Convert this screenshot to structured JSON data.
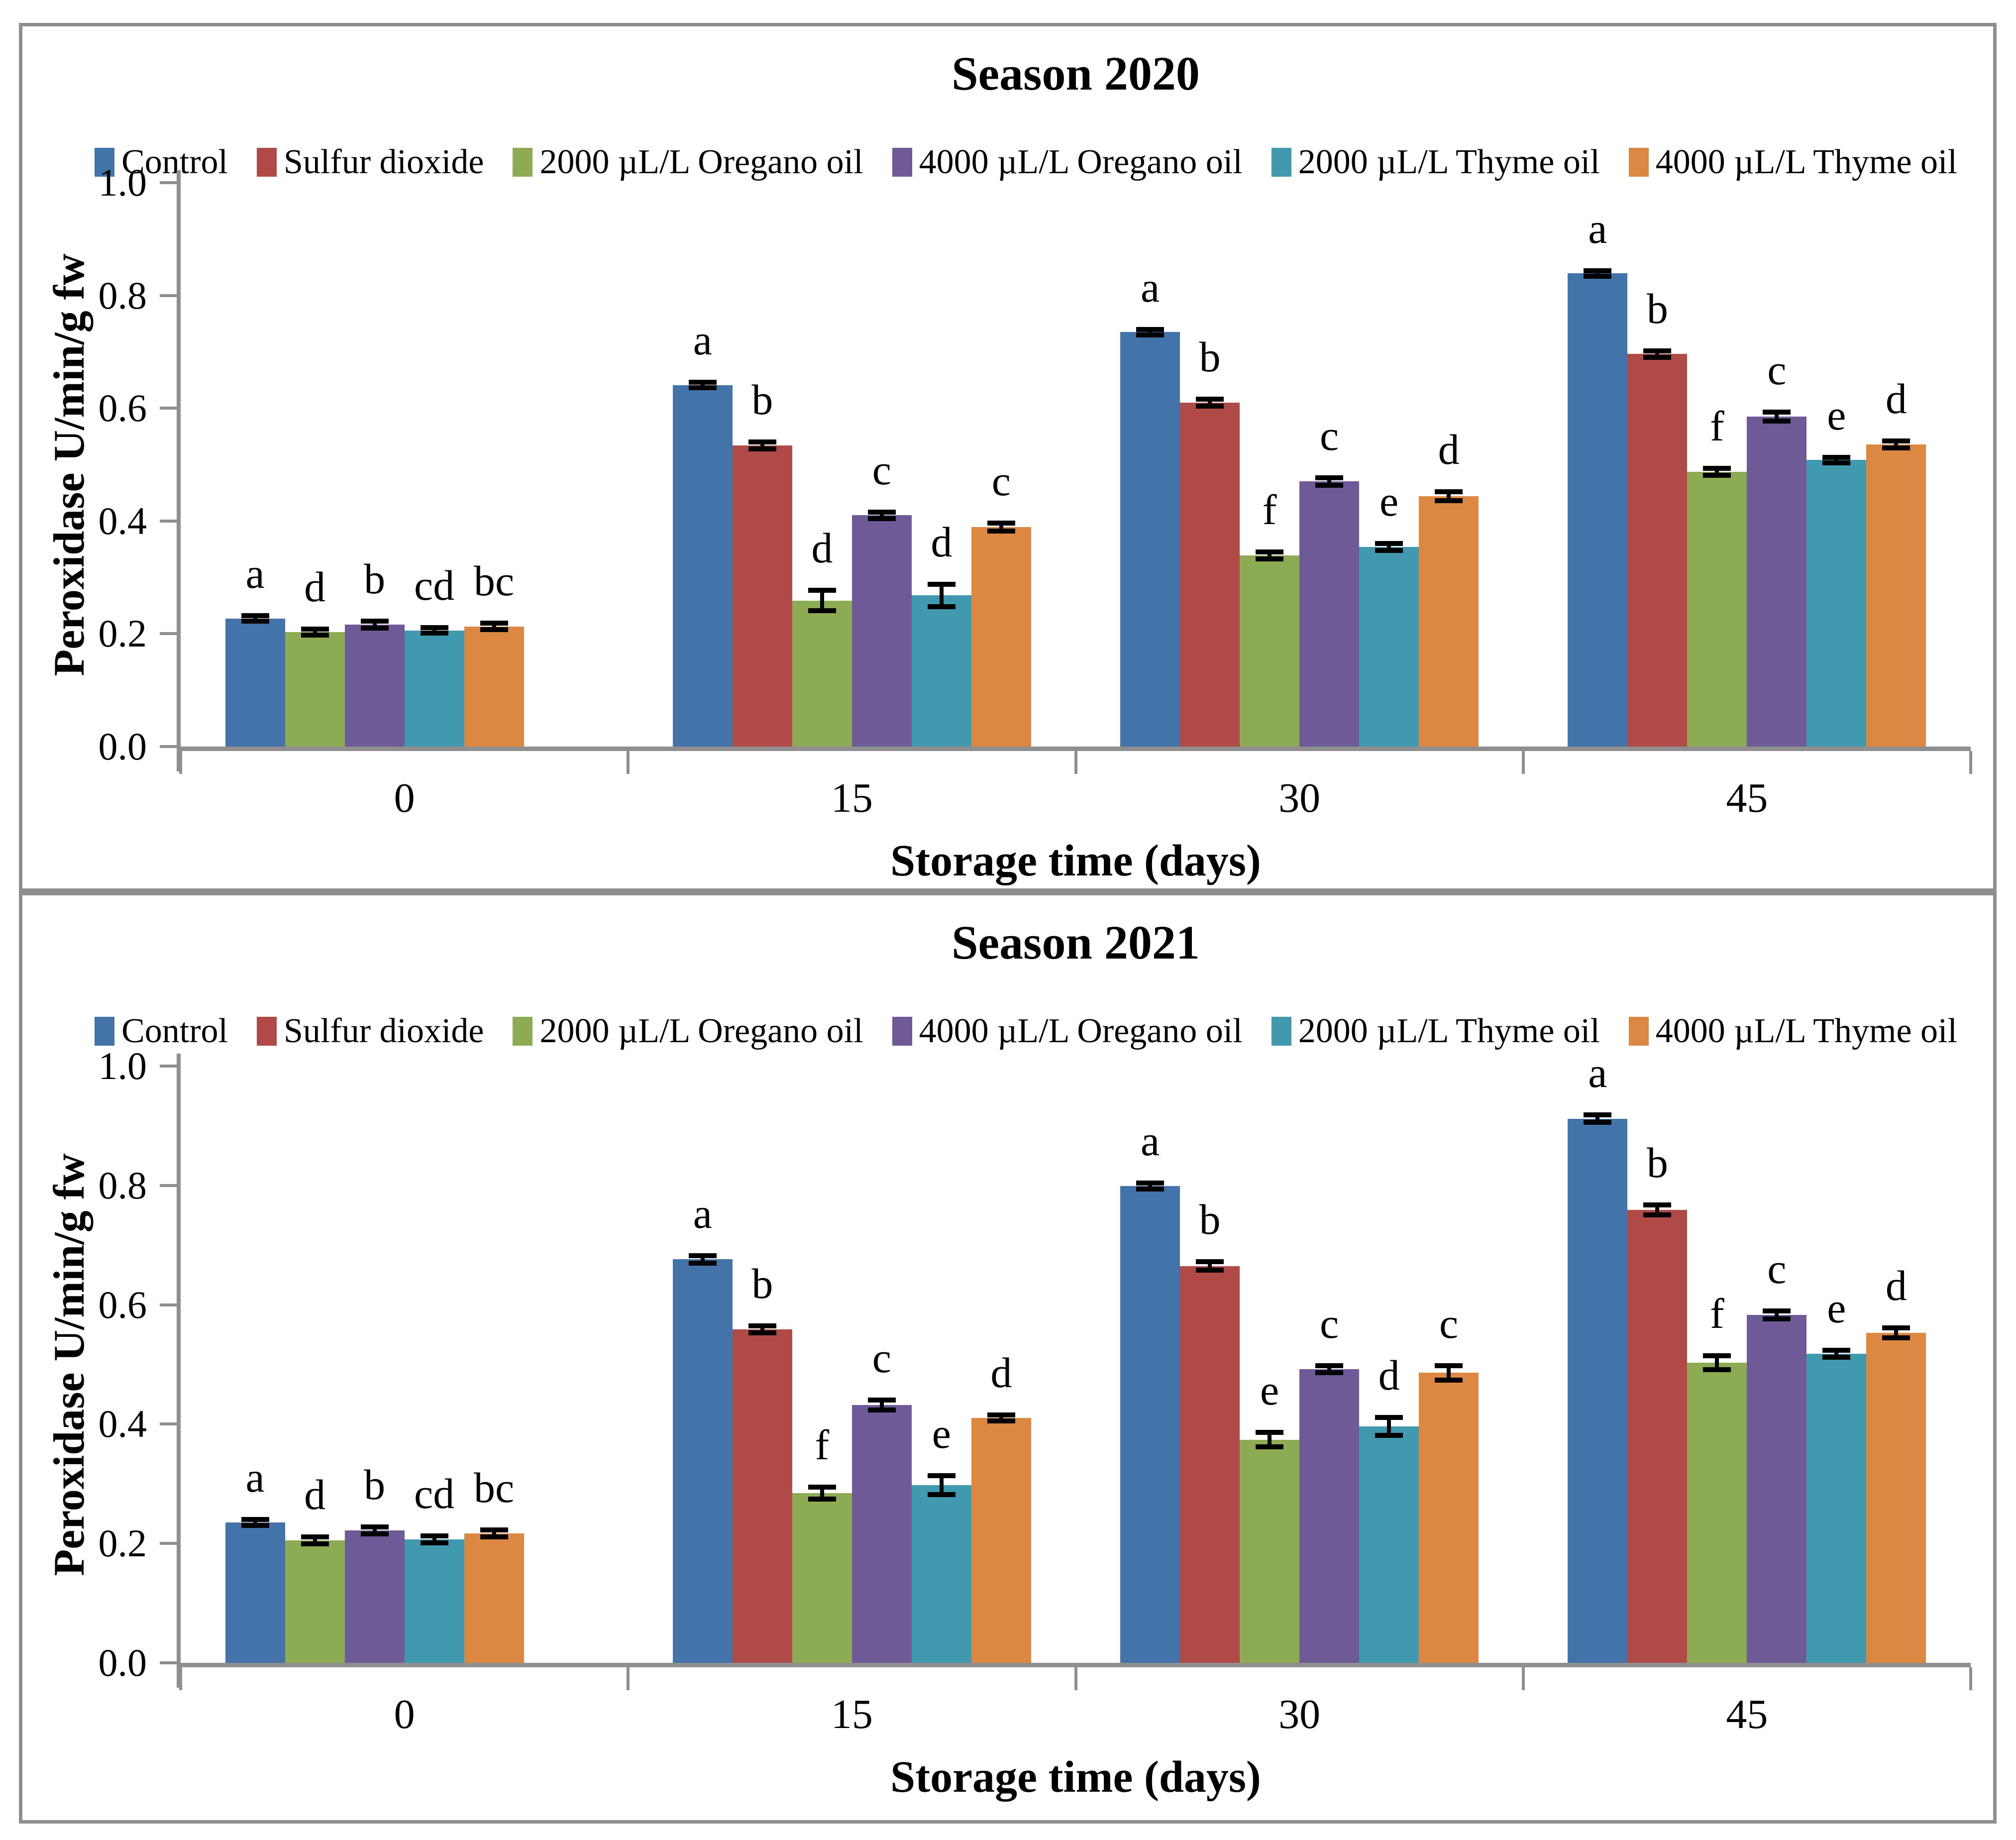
{
  "page": {
    "background": "#ffffff",
    "panel_border_color": "#8f8f8f",
    "axis_color": "#8f8f8f",
    "text_color": "#000000"
  },
  "chart_data": [
    {
      "type": "bar",
      "title": "Season 2020",
      "ylabel": "Peroxidase U/min/g fw",
      "xlabel": "Storage time (days)",
      "ylim": [
        0,
        1.0
      ],
      "yticks": [
        "0.0",
        "0.2",
        "0.4",
        "0.6",
        "0.8",
        "1.0"
      ],
      "categories": [
        "0",
        "15",
        "30",
        "45"
      ],
      "grid": false,
      "legend_position": "top",
      "error_bars": true,
      "series": [
        {
          "name": "Control",
          "color": "#4374a9",
          "values": [
            0.227,
            0.641,
            0.735,
            0.839
          ],
          "errors": [
            0.005,
            0.005,
            0.005,
            0.005
          ],
          "letters": [
            "a",
            "a",
            "a",
            "a"
          ]
        },
        {
          "name": "Sulfur dioxide",
          "color": "#b04a47",
          "values": [
            null,
            0.534,
            0.61,
            0.696
          ],
          "errors": [
            null,
            0.006,
            0.006,
            0.006
          ],
          "letters": [
            "",
            "b",
            "b",
            "b"
          ]
        },
        {
          "name": "2000 µL/L Oregano oil",
          "color": "#8cab52",
          "values": [
            0.203,
            0.259,
            0.339,
            0.487
          ],
          "errors": [
            0.005,
            0.018,
            0.006,
            0.006
          ],
          "letters": [
            "d",
            "d",
            "f",
            "f"
          ]
        },
        {
          "name": "4000 µL/L Oregano oil",
          "color": "#6e5a97",
          "values": [
            0.216,
            0.41,
            0.47,
            0.585
          ],
          "errors": [
            0.006,
            0.006,
            0.007,
            0.008
          ],
          "letters": [
            "b",
            "c",
            "c",
            "c"
          ]
        },
        {
          "name": "2000 µL/L Thyme oil",
          "color": "#4199b0",
          "values": [
            0.206,
            0.268,
            0.354,
            0.508
          ],
          "errors": [
            0.005,
            0.02,
            0.006,
            0.005
          ],
          "letters": [
            "cd",
            "d",
            "e",
            "e"
          ]
        },
        {
          "name": "4000 µL/L Thyme oil",
          "color": "#dc8843",
          "values": [
            0.213,
            0.389,
            0.444,
            0.536
          ],
          "errors": [
            0.006,
            0.007,
            0.008,
            0.006
          ],
          "letters": [
            "bc",
            "c",
            "d",
            "d"
          ]
        }
      ]
    },
    {
      "type": "bar",
      "title": "Season 2021",
      "ylabel": "Peroxidase U/min/g fw",
      "xlabel": "Storage time (days)",
      "ylim": [
        0,
        1.0
      ],
      "yticks": [
        "0.0",
        "0.2",
        "0.4",
        "0.6",
        "0.8",
        "1.0"
      ],
      "categories": [
        "0",
        "15",
        "30",
        "45"
      ],
      "grid": false,
      "legend_position": "top",
      "error_bars": true,
      "series": [
        {
          "name": "Control",
          "color": "#4374a9",
          "values": [
            0.235,
            0.676,
            0.799,
            0.912
          ],
          "errors": [
            0.005,
            0.006,
            0.005,
            0.006
          ],
          "letters": [
            "a",
            "a",
            "a",
            "a"
          ]
        },
        {
          "name": "Sulfur dioxide",
          "color": "#b04a47",
          "values": [
            null,
            0.559,
            0.665,
            0.759
          ],
          "errors": [
            null,
            0.006,
            0.007,
            0.008
          ],
          "letters": [
            "",
            "b",
            "b",
            "b"
          ]
        },
        {
          "name": "2000 µL/L Oregano oil",
          "color": "#8cab52",
          "values": [
            0.205,
            0.284,
            0.374,
            0.503
          ],
          "errors": [
            0.006,
            0.01,
            0.012,
            0.012
          ],
          "letters": [
            "d",
            "f",
            "e",
            "f"
          ]
        },
        {
          "name": "4000 µL/L Oregano oil",
          "color": "#6e5a97",
          "values": [
            0.222,
            0.432,
            0.492,
            0.583
          ],
          "errors": [
            0.006,
            0.008,
            0.006,
            0.007
          ],
          "letters": [
            "b",
            "c",
            "c",
            "c"
          ]
        },
        {
          "name": "2000 µL/L Thyme oil",
          "color": "#4199b0",
          "values": [
            0.207,
            0.298,
            0.396,
            0.518
          ],
          "errors": [
            0.006,
            0.016,
            0.015,
            0.006
          ],
          "letters": [
            "cd",
            "e",
            "d",
            "e"
          ]
        },
        {
          "name": "4000 µL/L Thyme oil",
          "color": "#dc8843",
          "values": [
            0.217,
            0.41,
            0.486,
            0.553
          ],
          "errors": [
            0.006,
            0.005,
            0.012,
            0.008
          ],
          "letters": [
            "bc",
            "d",
            "c",
            "d"
          ]
        }
      ]
    }
  ]
}
